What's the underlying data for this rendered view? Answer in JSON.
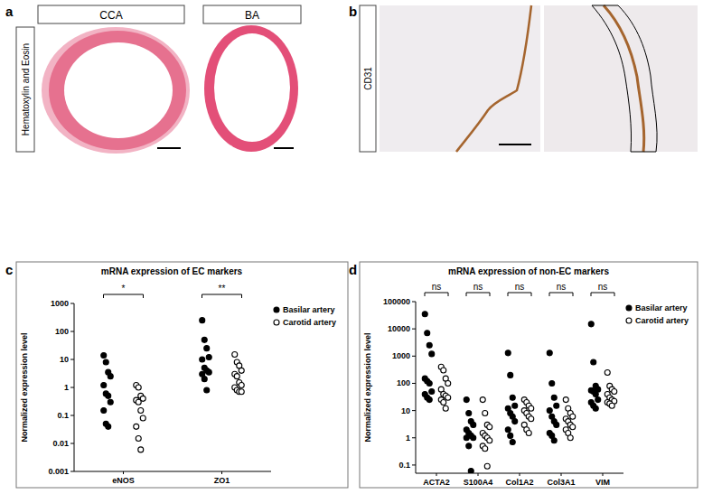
{
  "panel_letters": [
    "a",
    "b",
    "c",
    "d"
  ],
  "image_panels": {
    "row_labels": [
      "Hematoxylin and Eosin",
      "CD31"
    ],
    "columns": [
      "CCA",
      "BA"
    ]
  },
  "chart_data": [
    {
      "type": "scatter",
      "title": "mRNA expression of EC markers",
      "ylabel": "Normalized expression level",
      "categories": [
        "eNOS",
        "ZO1"
      ],
      "significance": [
        "*",
        "**"
      ],
      "log": "y",
      "ylim": [
        0.001,
        1000
      ],
      "yticks": [
        0.001,
        0.01,
        0.1,
        1,
        10,
        100,
        1000
      ],
      "legend": "top-right",
      "series": [
        {
          "name": "Basilar artery",
          "color": "#000000",
          "marker": "filled",
          "values": [
            [
              14,
              8,
              3.5,
              2.5,
              1.2,
              0.6,
              0.5,
              0.3,
              0.15,
              0.05,
              0.04
            ],
            [
              250,
              50,
              25,
              12,
              10,
              5,
              4,
              3.5,
              3,
              2,
              0.8
            ]
          ]
        },
        {
          "name": "Carotid artery",
          "color": "#000000",
          "marker": "open",
          "values": [
            [
              1.2,
              1,
              0.5,
              0.4,
              0.35,
              0.3,
              0.15,
              0.08,
              0.04,
              0.015,
              0.006
            ],
            [
              15,
              8,
              6,
              4,
              3,
              2.5,
              1.5,
              1.2,
              1,
              0.8,
              0.7,
              0.7
            ]
          ]
        }
      ]
    },
    {
      "type": "scatter",
      "title": "mRNA expression of non-EC markers",
      "ylabel": "Normalized expression level",
      "categories": [
        "ACTA2",
        "S100A4",
        "Col1A2",
        "Col3A1",
        "VIM"
      ],
      "significance": [
        "ns",
        "ns",
        "ns",
        "ns",
        "ns"
      ],
      "log": "y",
      "ylim": [
        0.05,
        100000
      ],
      "yticks": [
        0.1,
        1,
        10,
        100,
        1000,
        10000,
        100000
      ],
      "legend": "top-right",
      "series": [
        {
          "name": "Basilar artery",
          "color": "#000000",
          "marker": "filled",
          "values": [
            [
              35000,
              7000,
              2500,
              1200,
              150,
              120,
              100,
              50,
              40,
              30,
              25
            ],
            [
              25,
              8,
              4,
              3,
              2,
              1.5,
              1.2,
              1,
              1,
              0.5,
              0.06
            ],
            [
              1300,
              200,
              30,
              15,
              12,
              8,
              6,
              4,
              2,
              1.2,
              0.7
            ],
            [
              1300,
              100,
              30,
              15,
              10,
              6,
              4,
              3,
              1.5,
              1.2,
              0.8
            ],
            [
              15000,
              600,
              80,
              60,
              55,
              50,
              40,
              25,
              20,
              15,
              12
            ]
          ]
        },
        {
          "name": "Carotid artery",
          "color": "#000000",
          "marker": "open",
          "values": [
            [
              400,
              300,
              150,
              100,
              60,
              40,
              35,
              30,
              25,
              20,
              12
            ],
            [
              25,
              8,
              3,
              2.5,
              1.5,
              1.2,
              1,
              0.8,
              0.5,
              0.4,
              0.09
            ],
            [
              25,
              20,
              15,
              12,
              10,
              8,
              6,
              5,
              3,
              2,
              1.5
            ],
            [
              25,
              12,
              8,
              6,
              5,
              4,
              3,
              2.5,
              2,
              1.5,
              1
            ],
            [
              250,
              80,
              60,
              50,
              40,
              30,
              25,
              22,
              20,
              18,
              15
            ]
          ]
        }
      ]
    }
  ]
}
